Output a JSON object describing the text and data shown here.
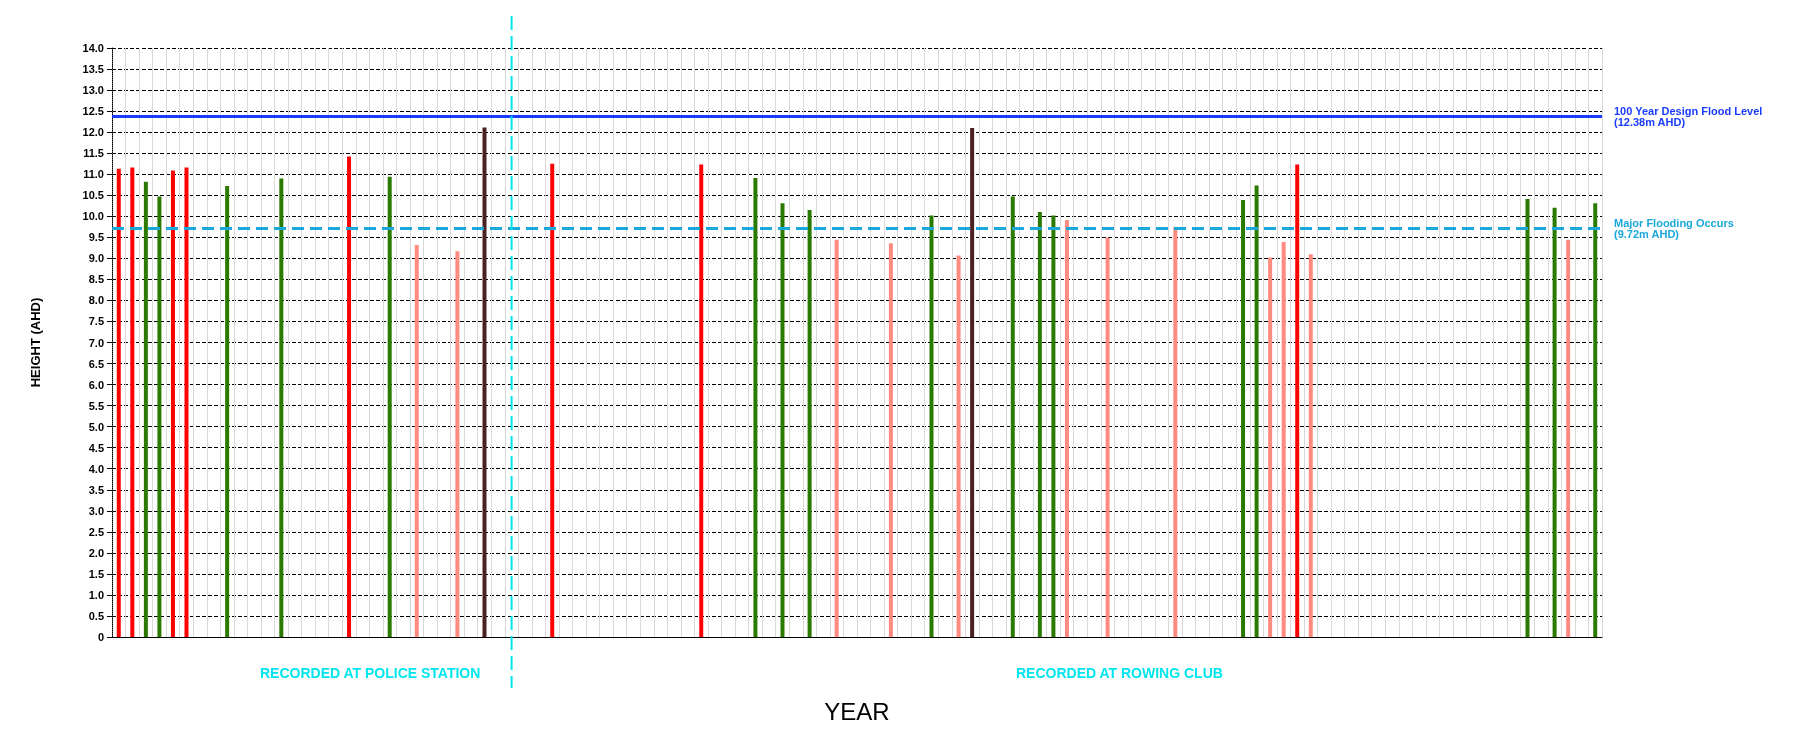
{
  "chart_data": {
    "type": "bar",
    "xlabel": "YEAR",
    "ylabel": "HEIGHT (AHD)",
    "categories": [
      null,
      null,
      null,
      null,
      null,
      null,
      null,
      null,
      null,
      null,
      null,
      null,
      null,
      null,
      null,
      null,
      null,
      null,
      null,
      null,
      null,
      null,
      null,
      null,
      null,
      null,
      null,
      null,
      null,
      null,
      null,
      null,
      null,
      null,
      null,
      null,
      null,
      null,
      null,
      null,
      null,
      null,
      null,
      null,
      null,
      null,
      null,
      null,
      null,
      null,
      null,
      null,
      null,
      null,
      null,
      null,
      null,
      null,
      null,
      null,
      null,
      null,
      null,
      null,
      null,
      null,
      null,
      null,
      null,
      null,
      null,
      null,
      null,
      null,
      null,
      null,
      null,
      null,
      null,
      null,
      null,
      null,
      null,
      null,
      null,
      null,
      null,
      null,
      null,
      null,
      null,
      null,
      null,
      null,
      null,
      null,
      null,
      null,
      null,
      null,
      null,
      null,
      null,
      null,
      null,
      null,
      null,
      null,
      null,
      null
    ],
    "series": [
      {
        "color": "#ff0000",
        "values": [
          11.13,
          11.16,
          null,
          null,
          11.09,
          11.16,
          null,
          null,
          null,
          null,
          null,
          null,
          null,
          null,
          null,
          null,
          null,
          11.42,
          null,
          null,
          null,
          null,
          null,
          null,
          null,
          null,
          null,
          null,
          null,
          null,
          null,
          null,
          11.25,
          null,
          null,
          null,
          null,
          null,
          null,
          null,
          null,
          null,
          null,
          11.23,
          null,
          null,
          null,
          null,
          null,
          null,
          null,
          null,
          null,
          null,
          null,
          null,
          null,
          null,
          null,
          null,
          null,
          null,
          null,
          null,
          null,
          null,
          null,
          null,
          null,
          null,
          null,
          null,
          null,
          null,
          null,
          null,
          null,
          null,
          null,
          null,
          null,
          null,
          null,
          null,
          null,
          null,
          null,
          11.23,
          null,
          null,
          null,
          null,
          null,
          null,
          null,
          null,
          null,
          null,
          null,
          null,
          null,
          null,
          null,
          null,
          null,
          null,
          null,
          null,
          null,
          null
        ]
      },
      {
        "color": "#2b7a00",
        "values": [
          null,
          null,
          10.82,
          10.47,
          null,
          null,
          null,
          null,
          10.72,
          null,
          null,
          null,
          10.9,
          null,
          null,
          null,
          null,
          null,
          null,
          null,
          10.94,
          null,
          null,
          null,
          null,
          null,
          null,
          null,
          null,
          null,
          null,
          null,
          null,
          null,
          null,
          null,
          null,
          null,
          null,
          null,
          null,
          null,
          null,
          null,
          null,
          null,
          null,
          10.91,
          null,
          10.31,
          null,
          10.15,
          null,
          null,
          null,
          null,
          null,
          null,
          null,
          null,
          10.02,
          null,
          null,
          null,
          null,
          null,
          10.47,
          null,
          10.1,
          10.02,
          null,
          null,
          null,
          null,
          null,
          null,
          null,
          null,
          null,
          null,
          null,
          null,
          null,
          10.39,
          10.73,
          null,
          null,
          null,
          null,
          null,
          null,
          null,
          null,
          null,
          null,
          null,
          null,
          null,
          null,
          null,
          null,
          null,
          null,
          null,
          10.41,
          null,
          10.2,
          null,
          null,
          10.31
        ]
      },
      {
        "color": "#ff8a80",
        "values": [
          null,
          null,
          null,
          null,
          null,
          null,
          null,
          null,
          null,
          null,
          null,
          null,
          null,
          null,
          null,
          null,
          null,
          null,
          null,
          null,
          null,
          null,
          9.32,
          null,
          null,
          9.17,
          null,
          null,
          null,
          null,
          null,
          null,
          null,
          null,
          null,
          null,
          null,
          null,
          null,
          null,
          null,
          null,
          null,
          null,
          null,
          null,
          null,
          null,
          null,
          null,
          null,
          null,
          null,
          9.44,
          null,
          null,
          null,
          9.36,
          null,
          null,
          null,
          null,
          9.07,
          null,
          null,
          null,
          null,
          null,
          null,
          null,
          9.91,
          null,
          null,
          9.49,
          null,
          null,
          null,
          null,
          9.75,
          null,
          null,
          null,
          null,
          null,
          null,
          9.02,
          9.39,
          null,
          9.1,
          null,
          null,
          null,
          null,
          null,
          null,
          null,
          null,
          null,
          null,
          null,
          null,
          null,
          null,
          null,
          null,
          null,
          null,
          9.44,
          null,
          null
        ]
      },
      {
        "color": "#4a2222",
        "values": [
          null,
          null,
          null,
          null,
          null,
          null,
          null,
          null,
          null,
          null,
          null,
          null,
          null,
          null,
          null,
          null,
          null,
          null,
          null,
          null,
          null,
          null,
          null,
          null,
          null,
          null,
          null,
          12.11,
          null,
          null,
          null,
          null,
          null,
          null,
          null,
          null,
          null,
          null,
          null,
          null,
          null,
          null,
          null,
          null,
          null,
          null,
          null,
          null,
          null,
          null,
          null,
          null,
          null,
          null,
          null,
          null,
          null,
          null,
          null,
          null,
          null,
          null,
          null,
          12.1,
          null,
          null,
          null,
          null,
          null,
          null,
          null,
          null,
          null,
          null,
          null,
          null,
          null,
          null,
          null,
          null,
          null,
          null,
          null,
          null,
          null,
          null,
          null,
          null,
          null,
          null,
          null,
          null,
          null,
          null,
          null,
          null,
          null,
          null,
          null,
          null,
          null,
          null,
          null,
          null,
          null,
          null,
          null,
          null,
          null,
          null
        ]
      }
    ],
    "ylim": [
      0,
      14
    ],
    "yticks": [
      0,
      0.5,
      {
        "value": 1,
        "label": "1.0"
      },
      1.5,
      {
        "value": 2,
        "label": "2.0"
      },
      2.5,
      {
        "value": 3,
        "label": "3.0"
      },
      3.5,
      {
        "value": 4,
        "label": "4.0"
      },
      4.5,
      {
        "value": 5,
        "label": "5.0"
      },
      5.5,
      {
        "value": 6,
        "label": "6.0"
      },
      6.5,
      {
        "value": 7,
        "label": "7.0"
      },
      7.5,
      {
        "value": 8,
        "label": "8.0"
      },
      8.5,
      {
        "value": 9,
        "label": "9.0"
      },
      9.5,
      {
        "value": 10,
        "label": "10.0"
      },
      10.5,
      {
        "value": 11,
        "label": "11.0"
      },
      11.5,
      {
        "value": 12,
        "label": "12.0"
      },
      12.5,
      {
        "value": 13,
        "label": "13.0"
      },
      13.5,
      {
        "value": 14,
        "label": "14.0"
      }
    ],
    "ref_lines": [
      {
        "axis": "y",
        "value": 12.38,
        "label": "100 Year Design Flood Level\n(12.38m AHD)",
        "color": "#1a3cff",
        "line_style": "solid"
      },
      {
        "axis": "y",
        "value": 9.72,
        "label": "Major Flooding Occurs\n(9.72m AHD)",
        "color": "#1aa7d9",
        "line_style": "dashed"
      }
    ],
    "annotations": [
      "RECORDED AT POLICE STATION",
      "RECORDED AT ROWING CLUB"
    ],
    "grid": true
  }
}
